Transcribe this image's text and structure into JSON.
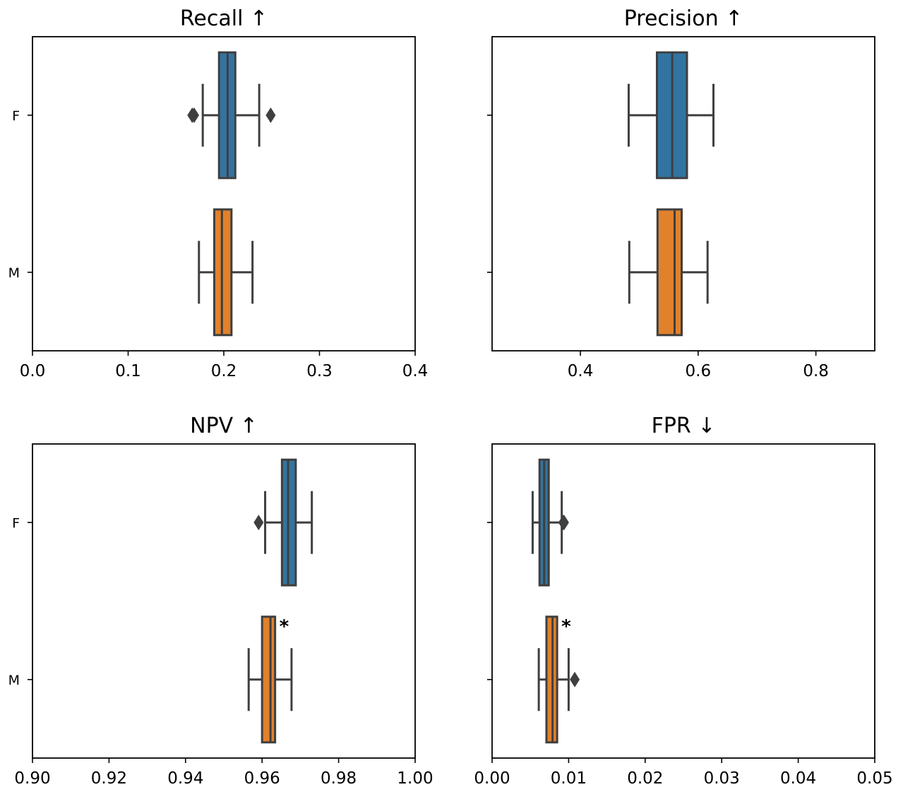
{
  "colors": {
    "F": "#3274a1",
    "M": "#e1812c",
    "line": "#3f3f3f",
    "frame": "#000000"
  },
  "chart_data": [
    {
      "type": "box",
      "orientation": "horizontal",
      "title": "Recall ↑",
      "categories": [
        "F",
        "M"
      ],
      "xlim": [
        0.0,
        0.4
      ],
      "xticks": [
        "0.0",
        "0.1",
        "0.2",
        "0.3",
        "0.4"
      ],
      "boxes": [
        {
          "group": "F",
          "whisker_low": 0.178,
          "q1": 0.195,
          "median": 0.204,
          "q3": 0.212,
          "whisker_high": 0.237,
          "outliers": [
            0.167,
            0.169,
            0.249
          ],
          "annotation": ""
        },
        {
          "group": "M",
          "whisker_low": 0.174,
          "q1": 0.19,
          "median": 0.198,
          "q3": 0.208,
          "whisker_high": 0.23,
          "outliers": [],
          "annotation": ""
        }
      ]
    },
    {
      "type": "box",
      "orientation": "horizontal",
      "title": "Precision ↑",
      "categories": [
        "F",
        "M"
      ],
      "xlim": [
        0.25,
        0.9
      ],
      "xticks": [
        "0.4",
        "0.6",
        "0.8"
      ],
      "xtick_values": [
        0.4,
        0.6,
        0.8
      ],
      "boxes": [
        {
          "group": "F",
          "whisker_low": 0.482,
          "q1": 0.53,
          "median": 0.556,
          "q3": 0.581,
          "whisker_high": 0.626,
          "outliers": [],
          "annotation": ""
        },
        {
          "group": "M",
          "whisker_low": 0.483,
          "q1": 0.531,
          "median": 0.56,
          "q3": 0.572,
          "whisker_high": 0.616,
          "outliers": [],
          "annotation": ""
        }
      ]
    },
    {
      "type": "box",
      "orientation": "horizontal",
      "title": "NPV ↑",
      "categories": [
        "F",
        "M"
      ],
      "xlim": [
        0.9,
        1.0
      ],
      "xticks": [
        "0.90",
        "0.92",
        "0.94",
        "0.96",
        "0.98",
        "1.00"
      ],
      "boxes": [
        {
          "group": "F",
          "whisker_low": 0.9608,
          "q1": 0.9652,
          "median": 0.9668,
          "q3": 0.9688,
          "whisker_high": 0.973,
          "outliers": [
            0.9591
          ],
          "annotation": ""
        },
        {
          "group": "M",
          "whisker_low": 0.9565,
          "q1": 0.96,
          "median": 0.9622,
          "q3": 0.9634,
          "whisker_high": 0.9677,
          "outliers": [],
          "annotation": "*"
        }
      ]
    },
    {
      "type": "box",
      "orientation": "horizontal",
      "title": "FPR ↓",
      "categories": [
        "F",
        "M"
      ],
      "xlim": [
        0.0,
        0.05
      ],
      "xticks": [
        "0.00",
        "0.01",
        "0.02",
        "0.03",
        "0.04",
        "0.05"
      ],
      "boxes": [
        {
          "group": "F",
          "whisker_low": 0.0053,
          "q1": 0.0062,
          "median": 0.0068,
          "q3": 0.0074,
          "whisker_high": 0.0091,
          "outliers": [
            0.0093,
            0.0094
          ],
          "annotation": ""
        },
        {
          "group": "M",
          "whisker_low": 0.0061,
          "q1": 0.0071,
          "median": 0.0079,
          "q3": 0.0085,
          "whisker_high": 0.01,
          "outliers": [
            0.0108
          ],
          "annotation": "*"
        }
      ]
    }
  ]
}
